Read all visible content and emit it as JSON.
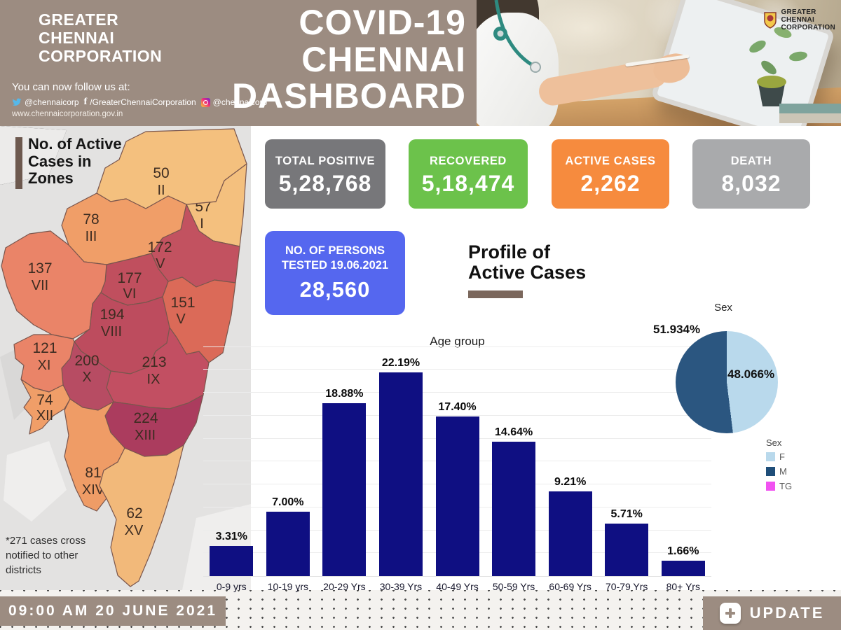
{
  "header": {
    "org_line1": "GREATER",
    "org_line2": "CHENNAI",
    "org_line3": "CORPORATION",
    "follow_text": "You can now follow us at:",
    "social": {
      "twitter": "@chennaicorp",
      "facebook": "/GreaterChennaiCorporation",
      "instagram": "@chennaicorp"
    },
    "website": "www.chennaicorporation.gov.in",
    "title_line1": "COVID-19",
    "title_line2": "CHENNAI",
    "title_line3": "DASHBOARD"
  },
  "stats": [
    {
      "label": "TOTAL POSITIVE",
      "value": "5,28,768",
      "color": "#77777a"
    },
    {
      "label": "RECOVERED",
      "value": "5,18,474",
      "color": "#6cc24b"
    },
    {
      "label": "ACTIVE CASES",
      "value": "2,262",
      "color": "#f68b3e"
    },
    {
      "label": "DEATH",
      "value": "8,032",
      "color": "#a9aaac"
    }
  ],
  "tested_card": {
    "label_line1": "NO. OF PERSONS",
    "label_line2": "TESTED 19.06.2021",
    "value": "28,560",
    "color": "#5567ef"
  },
  "profile_heading": {
    "line1": "Profile of",
    "line2": "Active Cases"
  },
  "map_panel": {
    "title_line1": "No. of Active",
    "title_line2": "Cases in",
    "title_line3": "Zones",
    "footnote_line1": "*271 cases cross",
    "footnote_line2": "notified to other",
    "footnote_line3": "districts",
    "zones": [
      {
        "zone": "I",
        "cases": "57",
        "color": "#f4c07e"
      },
      {
        "zone": "II",
        "cases": "50",
        "color": "#f4c07e"
      },
      {
        "zone": "III",
        "cases": "78",
        "color": "#f09e68"
      },
      {
        "zone": "IV",
        "cases": "172",
        "color": "#c25260"
      },
      {
        "zone": "V",
        "cases": "151",
        "color": "#db6a58"
      },
      {
        "zone": "VI",
        "cases": "177",
        "color": "#c04f5e"
      },
      {
        "zone": "VII",
        "cases": "137",
        "color": "#ea8468"
      },
      {
        "zone": "VIII",
        "cases": "194",
        "color": "#bd4c5e"
      },
      {
        "zone": "IX",
        "cases": "213",
        "color": "#c24f62"
      },
      {
        "zone": "X",
        "cases": "200",
        "color": "#b74c63"
      },
      {
        "zone": "XI",
        "cases": "121",
        "color": "#ea8468"
      },
      {
        "zone": "XII",
        "cases": "74",
        "color": "#f09e68"
      },
      {
        "zone": "XIII",
        "cases": "224",
        "color": "#ab3c5e"
      },
      {
        "zone": "XIV",
        "cases": "81",
        "color": "#ef9c66"
      },
      {
        "zone": "XV",
        "cases": "62",
        "color": "#f2b97a"
      }
    ]
  },
  "chart_data": [
    {
      "type": "bar",
      "title": "Age group",
      "categories": [
        "0-9 yrs",
        "10-19 yrs",
        "20-29 Yrs",
        "30-39 Yrs",
        "40-49 Yrs",
        "50-59 Yrs",
        "60-69 Yrs",
        "70-79 Yrs",
        "80+ Yrs"
      ],
      "values": [
        3.31,
        7.0,
        18.88,
        22.19,
        17.4,
        14.64,
        9.21,
        5.71,
        1.66
      ],
      "value_labels": [
        "3.31%",
        "7.00%",
        "18.88%",
        "22.19%",
        "17.40%",
        "14.64%",
        "9.21%",
        "5.71%",
        "1.66%"
      ],
      "xlabel": "Age group",
      "ylabel": "",
      "ylim": [
        0,
        25
      ],
      "grid": true,
      "bar_color": "#0f0f82"
    },
    {
      "type": "pie",
      "title": "Sex",
      "labels": [
        "F",
        "M",
        "TG"
      ],
      "values": [
        48.066,
        51.934,
        0
      ],
      "slice_labels": {
        "m": "51.934%",
        "f": "48.066%"
      },
      "colors": [
        "#b9d9ec",
        "#2b5680",
        "#f152f1"
      ],
      "legend_position": "right"
    },
    {
      "type": "heatmap",
      "title": "No. of Active Cases in Zones",
      "categories": [
        "I",
        "II",
        "III",
        "IV",
        "V",
        "VI",
        "VII",
        "VIII",
        "IX",
        "X",
        "XI",
        "XII",
        "XIII",
        "XIV",
        "XV"
      ],
      "values": [
        57,
        50,
        78,
        172,
        151,
        177,
        137,
        194,
        213,
        200,
        121,
        74,
        224,
        81,
        62
      ]
    }
  ],
  "pie_legend": {
    "title": "Sex",
    "entries": [
      {
        "label": "F",
        "color": "#b9d9ec"
      },
      {
        "label": "M",
        "color": "#1f4e79"
      },
      {
        "label": "TG",
        "color": "#f152f1"
      }
    ]
  },
  "footer": {
    "timestamp": "09:00 AM 20 JUNE 2021",
    "update_label": "UPDATE"
  }
}
